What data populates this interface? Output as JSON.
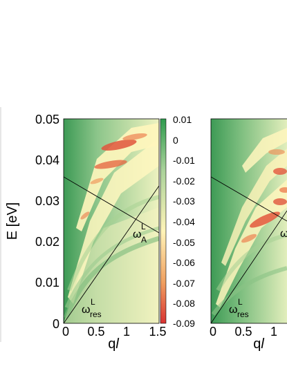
{
  "chart_data": [
    {
      "type": "heatmap",
      "xlabel": "q",
      "xlabel_italic_suffix": "l",
      "ylabel": "E [eV]",
      "xlim": [
        0,
        1.5
      ],
      "ylim": [
        0,
        0.05
      ],
      "x_ticks": [
        "0",
        "0.5",
        "1",
        "1.5"
      ],
      "y_ticks": [
        "0",
        "0.01",
        "0.02",
        "0.03",
        "0.04",
        "0.05"
      ],
      "colorbar": {
        "range": [
          -0.09,
          0.01
        ],
        "ticks": [
          "0.01",
          "0",
          "-0.01",
          "-0.02",
          "-0.03",
          "-0.04",
          "-0.05",
          "-0.06",
          "-0.07",
          "-0.08",
          "-0.09"
        ],
        "colors": [
          "#d93232",
          "#f0a060",
          "#fff4b8",
          "#a9d29a",
          "#2e9b4e"
        ]
      },
      "lines": [
        {
          "label": "ωresL",
          "points": [
            [
              0,
              0
            ],
            [
              1.5,
              0.0335
            ]
          ]
        },
        {
          "label": "ωAL",
          "points": [
            [
              0,
              0.0358
            ],
            [
              1.5,
              0.022
            ]
          ]
        }
      ],
      "annotations": [
        {
          "text": "ω",
          "sub": "res",
          "sup": "L",
          "at": [
            0.17,
            0.0055
          ]
        },
        {
          "text": "ω",
          "sub": "A",
          "sup": "L",
          "at": [
            1.12,
            0.018
          ]
        }
      ]
    },
    {
      "type": "heatmap",
      "xlabel": "q",
      "xlabel_italic_suffix": "l",
      "xlim": [
        0,
        1.5
      ],
      "ylim": [
        0,
        0.05
      ],
      "x_ticks": [
        "0",
        "0.5",
        "1"
      ],
      "lines": [
        {
          "label": "ωresL",
          "points": [
            [
              0,
              0
            ],
            [
              1.5,
              0.052
            ]
          ]
        },
        {
          "label": "ωAL",
          "points": [
            [
              0,
              0.0358
            ],
            [
              1.5,
              0.022
            ]
          ]
        }
      ],
      "annotations": [
        {
          "text": "ω",
          "sub": "res",
          "sup": "L",
          "at": [
            0.17,
            0.0055
          ]
        },
        {
          "text": "ω",
          "sub": "",
          "sup": "",
          "at": [
            1.08,
            0.0175
          ]
        }
      ]
    }
  ]
}
